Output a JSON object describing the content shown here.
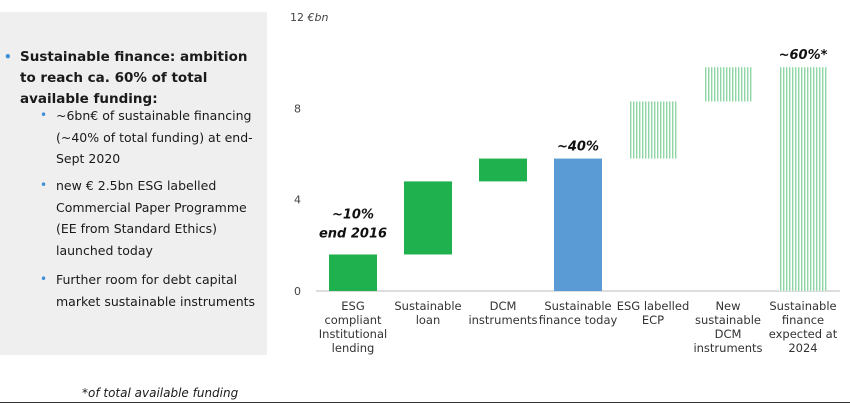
{
  "left_panel": {
    "main_bullet": "Sustainable finance: ambition to reach ca. 60% of total available funding:",
    "sub_bullets": [
      "~6bn€ of sustainable financing (~40% of total funding) at end-Sept 2020",
      "new € 2.5bn ESG labelled Commercial Paper Programme (EE from Standard Ethics) launched today",
      "Further room for debt capital market sustainable instruments"
    ]
  },
  "footnote": "*of total available funding",
  "chart_data": {
    "type": "bar",
    "subtype": "waterfall",
    "y_unit_label": "€bn",
    "ylim": [
      0,
      12
    ],
    "yticks": [
      0,
      4,
      8,
      12
    ],
    "grid": false,
    "categories": [
      [
        "ESG",
        "compliant",
        "Institutional",
        "lending"
      ],
      [
        "Sustainable",
        "loan"
      ],
      [
        "DCM",
        "instruments"
      ],
      [
        "Sustainable",
        "finance today"
      ],
      [
        "ESG labelled",
        "ECP"
      ],
      [
        "New",
        "sustainable",
        "DCM",
        "instruments"
      ],
      [
        "Sustainable",
        "finance",
        "expected at",
        "2024"
      ]
    ],
    "bars": [
      {
        "start": 0.0,
        "end": 1.6,
        "style": "solid",
        "color": "#1fb14e"
      },
      {
        "start": 1.6,
        "end": 4.8,
        "style": "solid",
        "color": "#1fb14e"
      },
      {
        "start": 4.8,
        "end": 5.8,
        "style": "solid",
        "color": "#1fb14e"
      },
      {
        "start": 0.0,
        "end": 5.8,
        "style": "solid",
        "color": "#5b9bd5"
      },
      {
        "start": 5.8,
        "end": 8.3,
        "style": "hatched",
        "color": "#1fb14e"
      },
      {
        "start": 8.3,
        "end": 9.8,
        "style": "hatched",
        "color": "#1fb14e"
      },
      {
        "start": 0.0,
        "end": 9.8,
        "style": "hatched",
        "color": "#1fb14e"
      }
    ],
    "annotations": [
      {
        "bar": 0,
        "lines": [
          "~10%",
          "end 2016"
        ]
      },
      {
        "bar": 3,
        "lines": [
          "~40%"
        ]
      },
      {
        "bar": 6,
        "lines": [
          "~60%*"
        ]
      }
    ]
  }
}
